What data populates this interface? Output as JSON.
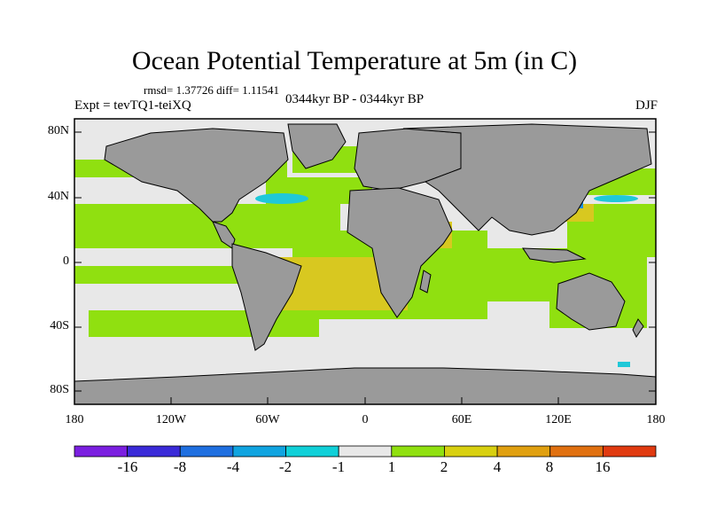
{
  "title": "Ocean Potential Temperature at 5m (in C)",
  "stats": "rmsd= 1.37726 diff= 1.11541",
  "experiment": "Expt = tevTQ1-teiXQ",
  "period": "0344kyr BP - 0344kyr BP",
  "season": "DJF",
  "y_ticks": [
    "80N",
    "40N",
    "0",
    "40S",
    "80S"
  ],
  "x_ticks": [
    "180",
    "120W",
    "60W",
    "0",
    "60E",
    "120E",
    "180"
  ],
  "colorbar": {
    "colors": [
      "#7b1fe0",
      "#3a2ad8",
      "#1f6fe0",
      "#10a4e0",
      "#10d0d8",
      "#e8e8e8",
      "#90e010",
      "#d8d010",
      "#e0a010",
      "#e07010",
      "#e03a10"
    ],
    "labels": [
      "-16",
      "-8",
      "-4",
      "-2",
      "-1",
      "1",
      "2",
      "4",
      "8",
      "16"
    ]
  },
  "palette": {
    "ocean_light": "#e8e8e8",
    "land": "#9a9a9a",
    "green": "#90e010",
    "yellow": "#d8c820",
    "cyan": "#20c8d8",
    "blue": "#1e90e0"
  }
}
